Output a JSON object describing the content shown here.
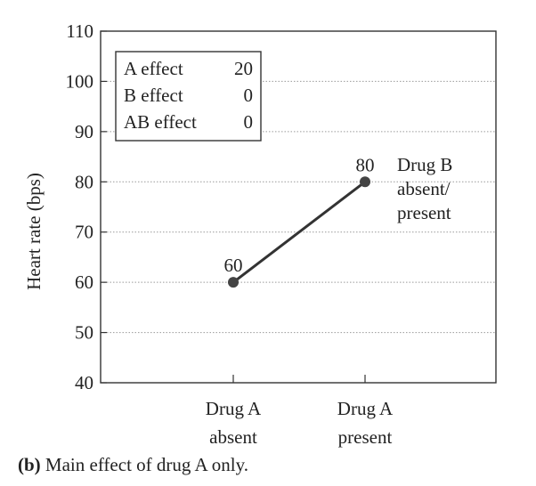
{
  "chart_data": {
    "type": "line",
    "categories": [
      "Drug A\nabsent",
      "Drug A\npresent"
    ],
    "series": [
      {
        "name": "Drug B\nabsent/\npresent",
        "values": [
          60,
          80
        ]
      }
    ],
    "point_labels": [
      "60",
      "80"
    ],
    "ylabel": "Heart rate (bps)",
    "xlabel": "",
    "ylim": [
      40,
      110
    ],
    "yticks": [
      40,
      50,
      60,
      70,
      80,
      90,
      100,
      110
    ],
    "grid": true,
    "legend": "none",
    "colors": {
      "line": "#333333",
      "point": "#444444",
      "grid": "#9a9a9a"
    },
    "effects_box": {
      "rows": [
        {
          "label": "A effect",
          "value": "20"
        },
        {
          "label": "B effect",
          "value": "0"
        },
        {
          "label": "AB effect",
          "value": "0"
        }
      ]
    }
  },
  "caption": {
    "prefix": "(b)",
    "text": " Main effect of drug A only."
  }
}
